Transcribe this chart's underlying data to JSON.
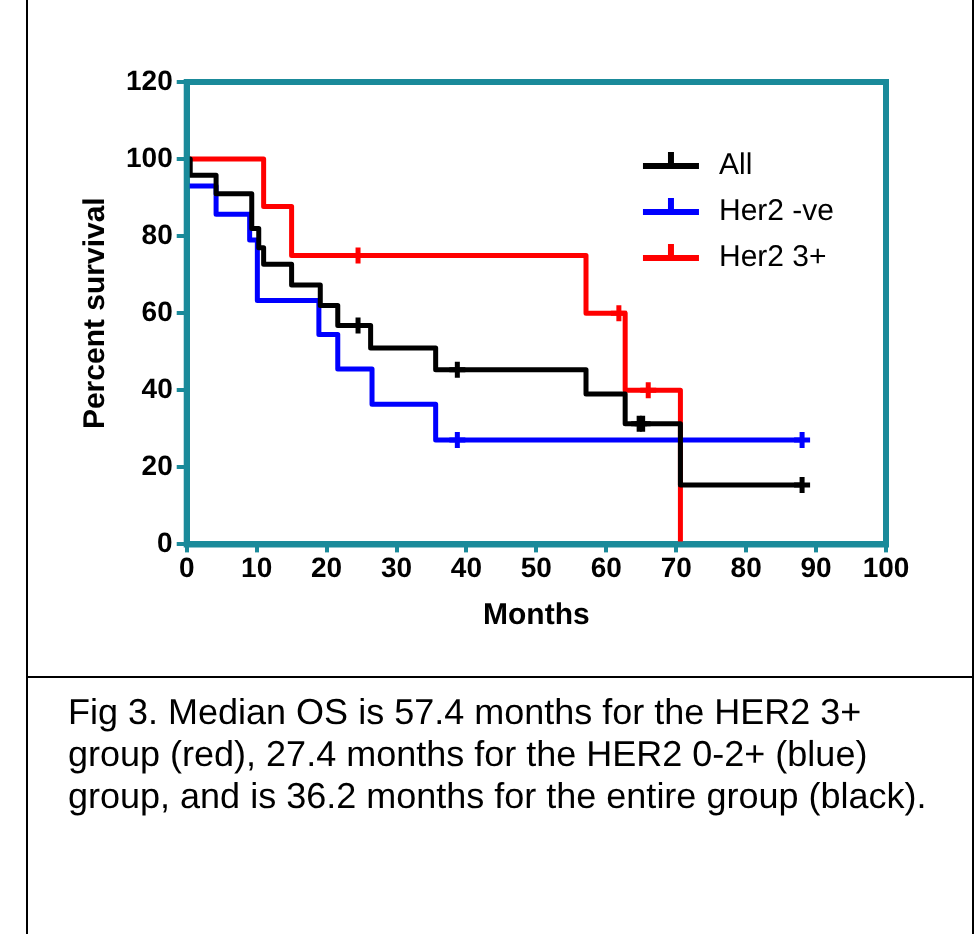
{
  "chart_data": {
    "type": "step",
    "xlabel": "Months",
    "ylabel": "Percent survival",
    "xlim": [
      0,
      100
    ],
    "xticks": [
      0,
      10,
      20,
      30,
      40,
      50,
      60,
      70,
      80,
      90,
      100
    ],
    "ylim": [
      0,
      120
    ],
    "yticks": [
      0,
      20,
      40,
      60,
      80,
      100,
      120
    ],
    "grid": false,
    "legend": "top right",
    "marker": "none",
    "series": [
      {
        "name": "All",
        "color": "#000000",
        "x": [
          0,
          0.5,
          4.2,
          9.3,
          10.3,
          11,
          15,
          19.1,
          21.6,
          26.3,
          35.6,
          57.1,
          62.7,
          70.6,
          88
        ],
        "values": [
          100,
          95.8,
          91,
          82,
          77,
          72.7,
          67.3,
          62,
          56.8,
          51,
          45.3,
          39,
          31.3,
          15.4,
          15.4
        ]
      },
      {
        "name": "Her2 -ve",
        "color": "#0000ff",
        "x": [
          0,
          4.2,
          9,
          10.1,
          18.9,
          21.6,
          26.5,
          35.6,
          88
        ],
        "values": [
          93,
          85.7,
          79,
          63.3,
          54.5,
          45.5,
          36.4,
          27.1,
          27.1
        ]
      },
      {
        "name": "Her2 3+",
        "color": "#ff0000",
        "x": [
          0,
          11,
          15,
          57.1,
          62.7,
          70.6
        ],
        "values": [
          100,
          87.7,
          75,
          60,
          40,
          0
        ]
      },
      {
        "type": "scatter",
        "marker": "cross",
        "color": "#000000",
        "x": [
          24.5,
          38.7,
          64.7,
          65.2,
          88
        ],
        "values": [
          56.8,
          45.3,
          31.3,
          31.3,
          15.4
        ]
      },
      {
        "type": "scatter",
        "marker": "cross",
        "color": "#0000ff",
        "x": [
          38.7,
          88
        ],
        "values": [
          27.1,
          27.1
        ]
      },
      {
        "type": "scatter",
        "marker": "cross",
        "color": "#ff0000",
        "x": [
          24.5,
          61.8,
          66
        ],
        "values": [
          75,
          60,
          40
        ]
      }
    ],
    "annotations": [
      "Fig 3. Median OS is 57.4 months for the HER2 3+ group (red), 27.4 months for the HER2 0-2+ (blue) group, and is 36.2 months for the entire group (black)."
    ]
  }
}
